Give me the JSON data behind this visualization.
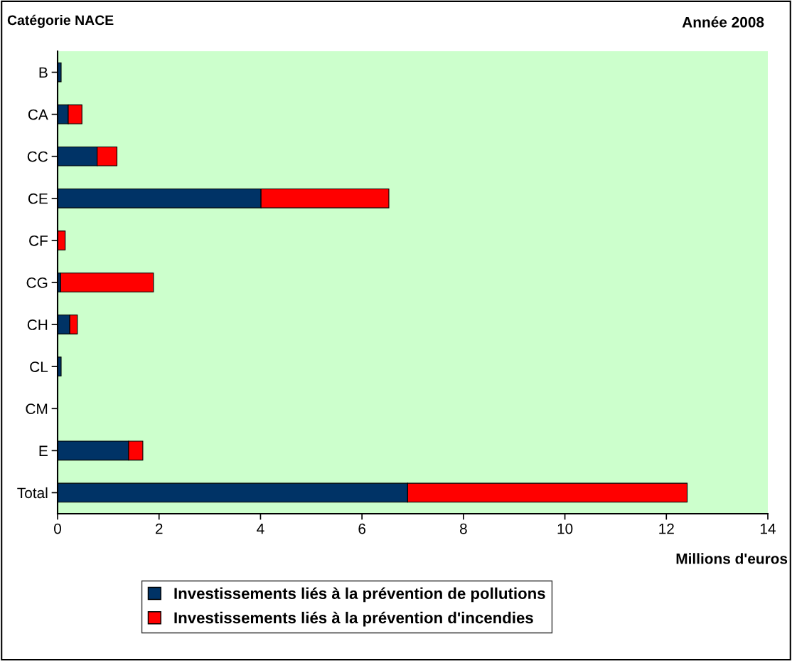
{
  "chart_data": {
    "type": "bar",
    "orientation": "horizontal",
    "stacked": true,
    "title": "Année 2008",
    "ylabel": "Catégorie NACE",
    "xlabel": "Millions d'euros",
    "categories": [
      "B",
      "CA",
      "CC",
      "CE",
      "CF",
      "CG",
      "CH",
      "CL",
      "CM",
      "E",
      "Total"
    ],
    "series": [
      {
        "name": "Investissements liés à la prévention de pollutions",
        "color": "#003366",
        "values": [
          0.07,
          0.21,
          0.78,
          4.01,
          null,
          0.06,
          0.24,
          0.07,
          null,
          1.4,
          6.9
        ]
      },
      {
        "name": "Investissements liés à la prévention d'incendies",
        "color": "#ff0000",
        "values": [
          null,
          0.27,
          0.39,
          2.52,
          0.15,
          1.83,
          0.15,
          null,
          null,
          0.28,
          5.51
        ]
      }
    ],
    "xlim": [
      0,
      14
    ],
    "xticks": [
      0,
      2,
      4,
      6,
      8,
      10,
      12,
      14
    ],
    "grid": false,
    "legend": "bottom"
  }
}
